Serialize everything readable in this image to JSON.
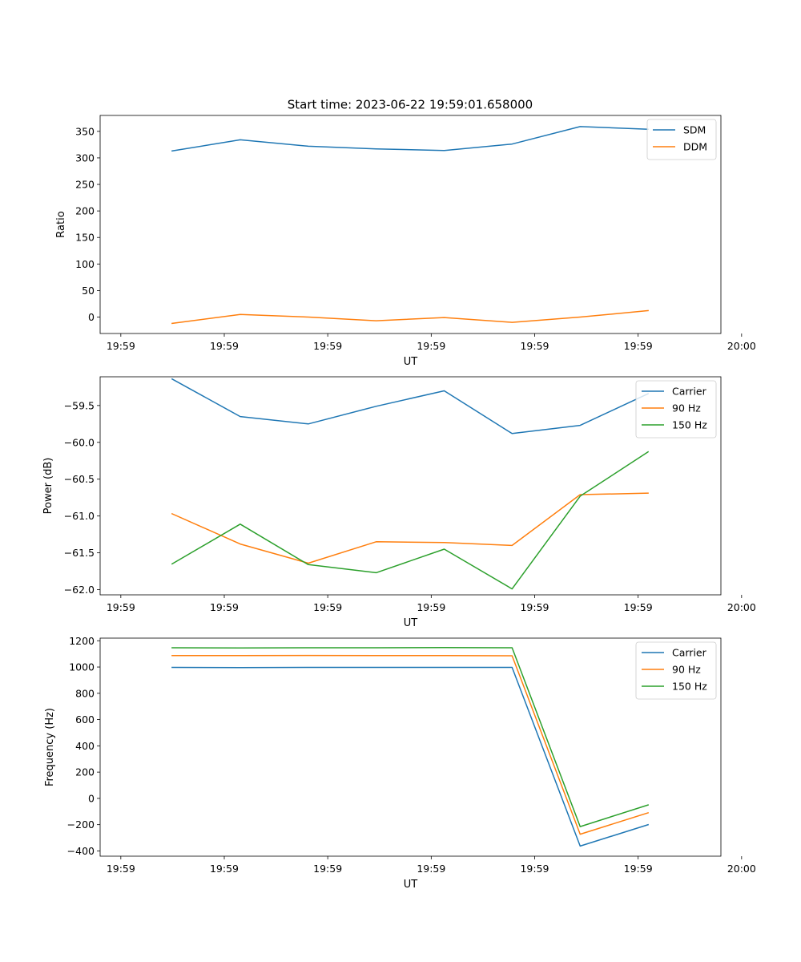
{
  "figure": {
    "title": "Start time: 2023-06-22 19:59:01.658000"
  },
  "chart_data": [
    {
      "type": "line",
      "title": "Start time: 2023-06-22 19:59:01.658000",
      "xlabel": "UT",
      "ylabel": "Ratio",
      "x_tick_labels": [
        "19:59",
        "19:59",
        "19:59",
        "19:59",
        "19:59",
        "19:59",
        "20:00"
      ],
      "x_range_s": [
        1.0,
        4.0
      ],
      "x_tick_s": [
        1.1,
        1.6,
        2.1,
        2.6,
        3.1,
        3.6,
        4.1
      ],
      "x_s": [
        1.348,
        1.677,
        2.006,
        2.334,
        2.663,
        2.991,
        3.32,
        3.648
      ],
      "ylim": [
        -31,
        380
      ],
      "y_ticks": [
        0,
        50,
        100,
        150,
        200,
        250,
        300,
        350
      ],
      "y_tick_labels": [
        "0",
        "50",
        "100",
        "150",
        "200",
        "250",
        "300",
        "350"
      ],
      "legend": "top-right",
      "series": [
        {
          "name": "SDM",
          "color": "#1f77b4",
          "values": [
            313,
            334,
            322,
            317,
            314,
            326,
            359,
            354
          ]
        },
        {
          "name": "DDM",
          "color": "#ff7f0e",
          "values": [
            -12,
            5,
            0,
            -7,
            -1,
            -10,
            0,
            12
          ]
        }
      ]
    },
    {
      "type": "line",
      "title": "",
      "xlabel": "UT",
      "ylabel": "Power (dB)",
      "x_tick_labels": [
        "19:59",
        "19:59",
        "19:59",
        "19:59",
        "19:59",
        "19:59",
        "20:00"
      ],
      "x_range_s": [
        1.0,
        4.0
      ],
      "x_tick_s": [
        1.1,
        1.6,
        2.1,
        2.6,
        3.1,
        3.6,
        4.1
      ],
      "x_s": [
        1.348,
        1.677,
        2.006,
        2.334,
        2.663,
        2.991,
        3.32,
        3.648
      ],
      "ylim": [
        -62.07,
        -59.11
      ],
      "y_ticks": [
        -62.0,
        -61.5,
        -61.0,
        -60.5,
        -60.0,
        -59.5
      ],
      "y_tick_labels": [
        "−62.0",
        "−61.5",
        "−61.0",
        "−60.5",
        "−60.0",
        "−59.5"
      ],
      "legend": "top-right",
      "series": [
        {
          "name": "Carrier",
          "color": "#1f77b4",
          "values": [
            -59.14,
            -59.65,
            -59.75,
            -59.51,
            -59.3,
            -59.88,
            -59.77,
            -59.34
          ]
        },
        {
          "name": "90 Hz",
          "color": "#ff7f0e",
          "values": [
            -60.97,
            -61.38,
            -61.64,
            -61.35,
            -61.36,
            -61.4,
            -60.71,
            -60.69
          ]
        },
        {
          "name": "150 Hz",
          "color": "#2ca02c",
          "values": [
            -61.65,
            -61.11,
            -61.66,
            -61.77,
            -61.45,
            -61.99,
            -60.73,
            -60.13
          ]
        }
      ]
    },
    {
      "type": "line",
      "title": "",
      "xlabel": "UT",
      "ylabel": "Frequency (Hz)",
      "x_tick_labels": [
        "19:59",
        "19:59",
        "19:59",
        "19:59",
        "19:59",
        "19:59",
        "20:00"
      ],
      "x_range_s": [
        1.0,
        4.0
      ],
      "x_tick_s": [
        1.1,
        1.6,
        2.1,
        2.6,
        3.1,
        3.6,
        4.1
      ],
      "x_s": [
        1.348,
        1.677,
        2.006,
        2.334,
        2.663,
        2.991,
        3.32,
        3.648
      ],
      "ylim": [
        -440,
        1220
      ],
      "y_ticks": [
        -400,
        -200,
        0,
        200,
        400,
        600,
        800,
        1000,
        1200
      ],
      "y_tick_labels": [
        "−400",
        "−200",
        "0",
        "200",
        "400",
        "600",
        "800",
        "1000",
        "1200"
      ],
      "legend": "top-right",
      "series": [
        {
          "name": "Carrier",
          "color": "#1f77b4",
          "values": [
            997,
            996,
            997,
            997,
            997,
            997,
            -363,
            -200
          ]
        },
        {
          "name": "90 Hz",
          "color": "#ff7f0e",
          "values": [
            1087,
            1087,
            1088,
            1087,
            1087,
            1086,
            -273,
            -110
          ]
        },
        {
          "name": "150 Hz",
          "color": "#2ca02c",
          "values": [
            1147,
            1145,
            1147,
            1147,
            1148,
            1147,
            -215,
            -50
          ]
        }
      ]
    }
  ]
}
